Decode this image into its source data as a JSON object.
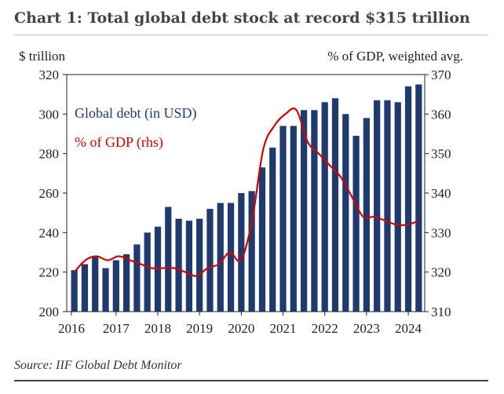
{
  "title": "Chart 1: Total global debt stock at record $315 trillion",
  "source": "Source: IIF Global Debt Monitor",
  "chart_data": {
    "type": "bar",
    "ylabel_left": "$ trillion",
    "ylabel_right": "% of GDP, weighted avg.",
    "ylim_left": [
      200,
      320
    ],
    "ylim_right": [
      310,
      370
    ],
    "yticks_left": [
      "200",
      "220",
      "240",
      "260",
      "280",
      "300",
      "320"
    ],
    "yticks_right": [
      "310",
      "320",
      "330",
      "340",
      "350",
      "360",
      "370"
    ],
    "x_start_year": 2016,
    "xticks": [
      "2016",
      "2017",
      "2018",
      "2019",
      "2020",
      "2021",
      "2022",
      "2023",
      "2024"
    ],
    "grid": false,
    "legend": [
      {
        "name": "Global debt (in USD)",
        "color": "#1f3a6e"
      },
      {
        "name": "% of GDP (rhs)",
        "color": "#d40000"
      }
    ],
    "series": [
      {
        "name": "Global debt (in USD)",
        "type": "bar",
        "axis": "left",
        "color": "#1f3a6e",
        "values": [
          221,
          224,
          228,
          222,
          226,
          229,
          234,
          240,
          243,
          253,
          247,
          246,
          247,
          252,
          255,
          255,
          260,
          261,
          273,
          283,
          294,
          294,
          302,
          302,
          306,
          308,
          300,
          289,
          298,
          307,
          307,
          306,
          314,
          315
        ]
      },
      {
        "name": "% of GDP (rhs)",
        "type": "line",
        "axis": "right",
        "color": "#d40000",
        "values": [
          320,
          323,
          324,
          323,
          324,
          323,
          322,
          321,
          321,
          321,
          320,
          319,
          321,
          322,
          325,
          323,
          333,
          351,
          357,
          360,
          361,
          353,
          350,
          347,
          344,
          339,
          334,
          334,
          333,
          332,
          332,
          333
        ]
      }
    ]
  }
}
